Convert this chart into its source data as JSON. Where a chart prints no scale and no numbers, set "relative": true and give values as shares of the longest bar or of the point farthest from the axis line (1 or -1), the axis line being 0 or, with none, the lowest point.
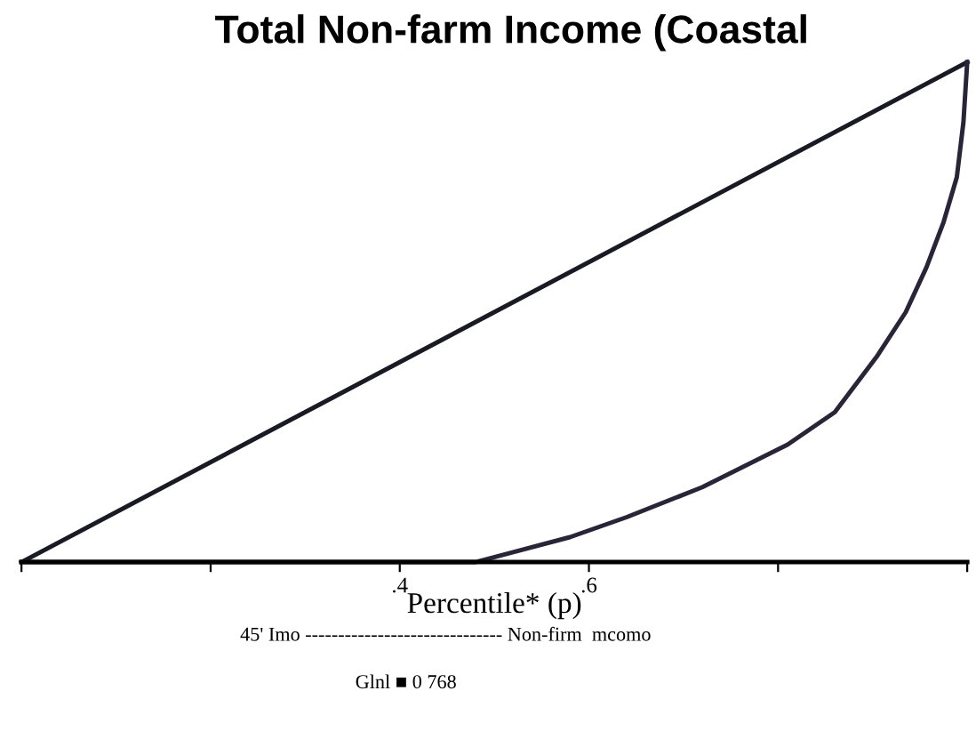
{
  "chart_data": {
    "type": "line",
    "title": "Total Non-farm Income (Coastal",
    "xlabel": "Percentile* (p)",
    "relative": true,
    "xlim": [
      0,
      1
    ],
    "xticks": [
      {
        "value": 0,
        "label": null
      },
      {
        "value": 0.2,
        "label": null
      },
      {
        "value": 0.4,
        "label": ".4"
      },
      {
        "value": 0.6,
        "label": ".6"
      },
      {
        "value": 0.8,
        "label": null
      },
      {
        "value": 1,
        "label": null
      }
    ],
    "series": [
      {
        "color": "#1a1a24",
        "x": [
          0,
          1
        ],
        "values": [
          0,
          1
        ]
      },
      {
        "color": "#2a2438",
        "x": [
          0,
          0.48,
          0.52,
          0.58,
          0.64,
          0.72,
          0.81,
          0.86,
          0.904,
          0.935,
          0.957,
          0.975,
          0.989,
          0.996,
          1
        ],
        "values": [
          0,
          0,
          0.02,
          0.05,
          0.09,
          0.15,
          0.235,
          0.3,
          0.41,
          0.5,
          0.59,
          0.68,
          0.77,
          0.88,
          1
        ]
      }
    ],
    "annotations": [
      "45' Imo ------------------------------ Non-firm  mcomo",
      "Glnl ■ 0 768"
    ],
    "grid": false,
    "legend": false,
    "marker": "none",
    "line_style": "solid"
  }
}
